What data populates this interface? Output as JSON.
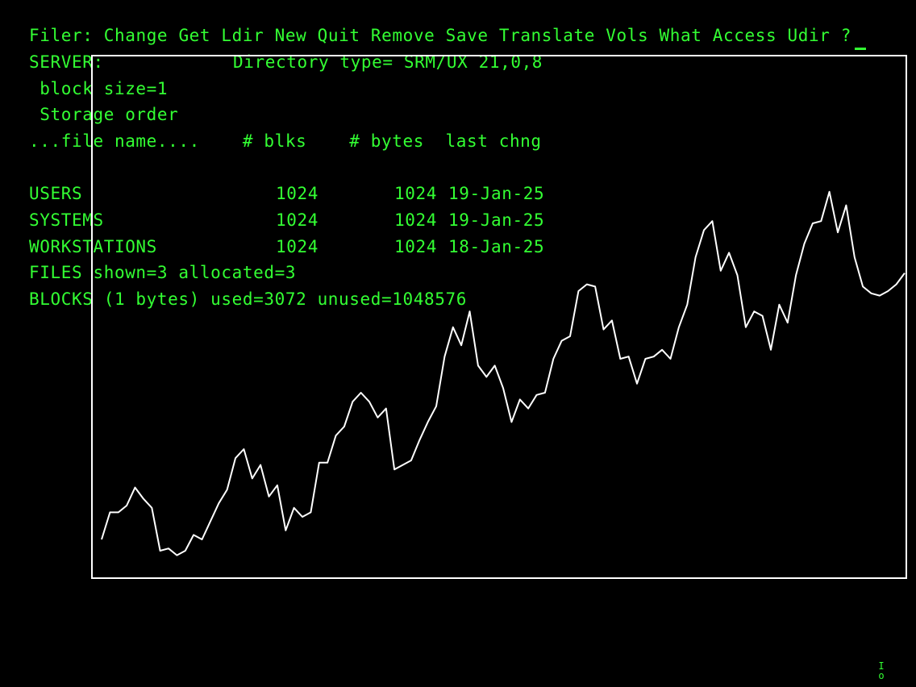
{
  "colors": {
    "background": "#000000",
    "text": "#33ff33",
    "plot": "#ffffff"
  },
  "menu": {
    "prefix": "Filer:",
    "items": [
      "Change",
      "Get",
      "Ldir",
      "New",
      "Quit",
      "Remove",
      "Save",
      "Translate",
      "Vols",
      "What",
      "Access",
      "Udir",
      "?"
    ]
  },
  "directory": {
    "volume": "SERVER:",
    "type_label": "Directory type= SRM/UX 21,0,8",
    "block_size": " block size=1",
    "storage_order": " Storage order",
    "column_header": "...file name....    # blks    # bytes  last chng",
    "files": [
      {
        "name": "USERS",
        "blocks": "1024",
        "bytes": "1024",
        "changed": "19-Jan-25"
      },
      {
        "name": "SYSTEMS",
        "blocks": "1024",
        "bytes": "1024",
        "changed": "19-Jan-25"
      },
      {
        "name": "WORKSTATIONS",
        "blocks": "1024",
        "bytes": "1024",
        "changed": "18-Jan-25"
      }
    ],
    "files_summary": "FILES shown=3 allocated=3",
    "blocks_summary": "BLOCKS (1 bytes) used=3072 unused=1048576"
  },
  "status_indicator": {
    "glyph_top": "I",
    "glyph_bottom": "o"
  },
  "graph": {
    "type": "line",
    "values": [
      5,
      17,
      17,
      20,
      28,
      23,
      19,
      0,
      1,
      -2,
      0,
      7,
      5,
      13,
      21,
      27,
      41,
      45,
      32,
      38,
      24,
      29,
      9,
      19,
      15,
      17,
      39,
      39,
      51,
      55,
      66,
      70,
      66,
      59,
      63,
      36,
      38,
      40,
      49,
      57,
      64,
      86,
      99,
      91,
      106,
      82,
      77,
      82,
      72,
      57,
      67,
      63,
      69,
      70,
      85,
      93,
      95,
      115,
      118,
      117,
      98,
      102,
      85,
      86,
      74,
      85,
      86,
      89,
      85,
      99,
      109,
      130,
      142,
      146,
      124,
      132,
      122,
      99,
      106,
      104,
      89,
      109,
      101,
      122,
      136,
      145,
      146,
      159,
      141,
      153,
      130,
      117,
      114,
      113,
      115,
      118,
      123
    ]
  }
}
